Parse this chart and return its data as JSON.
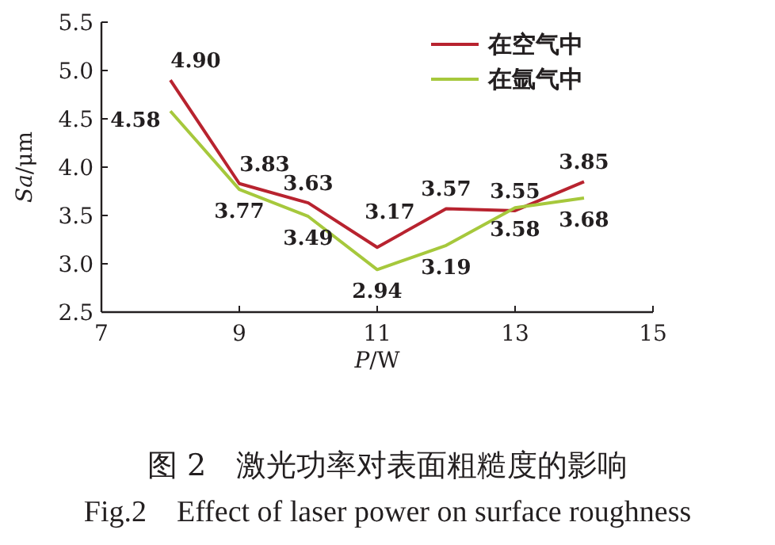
{
  "chart_data": {
    "type": "line",
    "title": "图 2　激光功率对表面粗糙度的影响",
    "subtitle": "Fig.2　Effect of laser power on surface roughness",
    "xlabel": "*P*/W",
    "ylabel": "*Sa*/μm",
    "x": [
      8,
      9,
      10,
      11,
      12,
      13,
      14
    ],
    "series": [
      {
        "name": "在空气中",
        "color": "#b8232f",
        "values": [
          4.9,
          3.83,
          3.63,
          3.17,
          3.57,
          3.55,
          3.85
        ],
        "value_labels": [
          "4.90",
          "3.83",
          "3.63",
          "3.17",
          "3.57",
          "3.55",
          "3.85"
        ]
      },
      {
        "name": "在氩气中",
        "color": "#a6c83c",
        "values": [
          4.58,
          3.77,
          3.49,
          2.94,
          3.19,
          3.58,
          3.68
        ],
        "value_labels": [
          "4.58",
          "3.77",
          "3.49",
          "2.94",
          "3.19",
          "3.58",
          "3.68"
        ]
      }
    ],
    "xlim": [
      7,
      15
    ],
    "xticks": [
      7,
      9,
      11,
      13,
      15
    ],
    "ylim": [
      2.5,
      5.5
    ],
    "yticks": [
      2.5,
      {
        "value": 3,
        "label": "3.0"
      },
      3.5,
      {
        "value": 4,
        "label": "4.0"
      },
      4.5,
      {
        "value": 5,
        "label": "5.0"
      },
      5.5
    ],
    "legend": "top right",
    "grid": false,
    "marker": "none",
    "line_style": "solid"
  }
}
